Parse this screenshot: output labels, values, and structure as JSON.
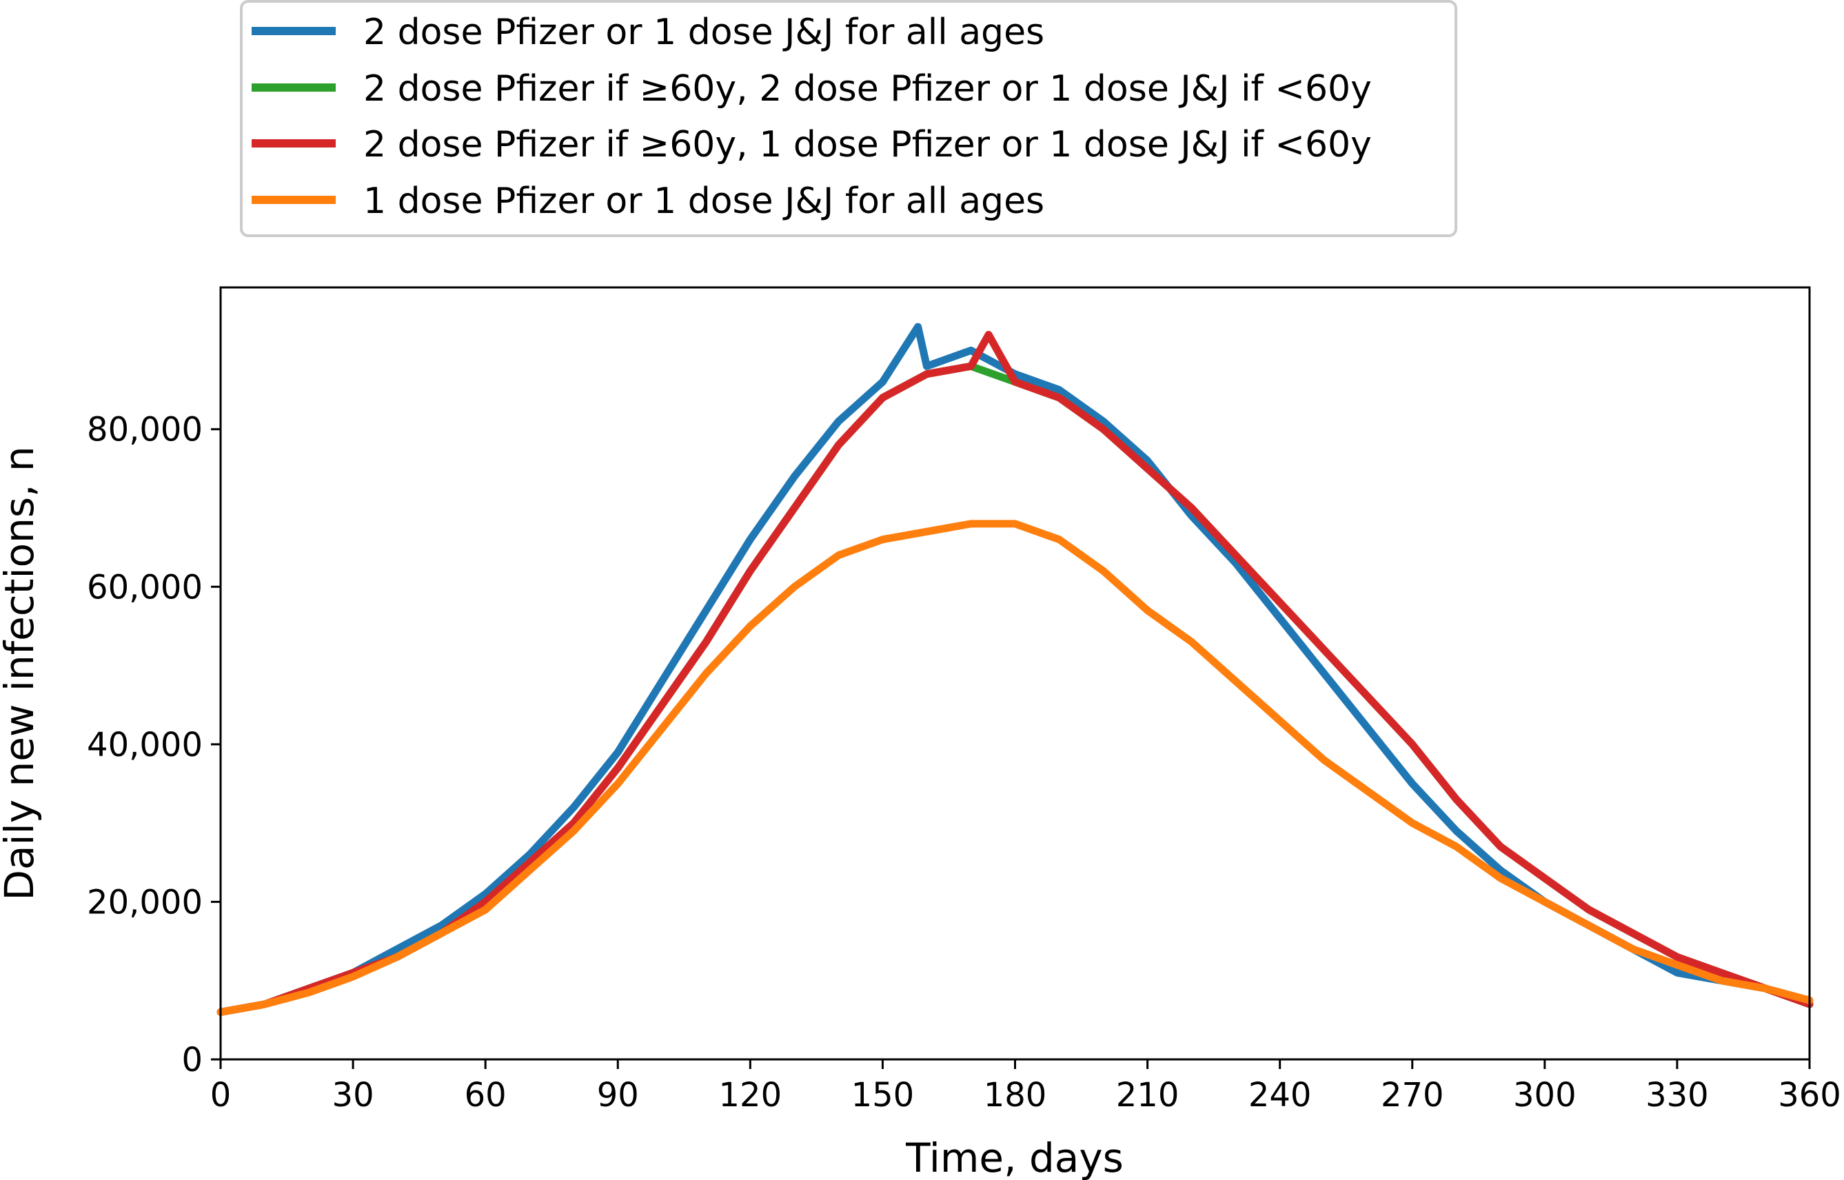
{
  "colors": {
    "series1": "#1f77b4",
    "series2": "#2ca02c",
    "series3": "#d62728",
    "series4": "#ff7f0e",
    "axis": "#000000",
    "legend_border": "#cccccc"
  },
  "chart_data": {
    "type": "line",
    "title": "",
    "xlabel": "Time, days",
    "ylabel": "Daily new infections, n",
    "xlim": [
      0,
      360
    ],
    "ylim": [
      0,
      98000
    ],
    "xticks": [
      0,
      30,
      60,
      90,
      120,
      150,
      180,
      210,
      240,
      270,
      300,
      330,
      360
    ],
    "yticks": [
      0,
      20000,
      40000,
      60000,
      80000
    ],
    "xtick_labels": [
      "0",
      "30",
      "60",
      "90",
      "120",
      "150",
      "180",
      "210",
      "240",
      "270",
      "300",
      "330",
      "360"
    ],
    "ytick_labels": [
      "0",
      "20,000",
      "40,000",
      "60,000",
      "80,000"
    ],
    "grid": false,
    "legend_position": "top-center, above plot",
    "series": [
      {
        "name": "2 dose Pfizer or 1 dose J&J for all ages",
        "color": "#1f77b4",
        "x": [
          0,
          10,
          20,
          30,
          40,
          50,
          60,
          70,
          80,
          90,
          100,
          110,
          120,
          130,
          140,
          150,
          158,
          160,
          170,
          180,
          190,
          200,
          210,
          220,
          230,
          240,
          250,
          260,
          270,
          280,
          290,
          300,
          310,
          320,
          330,
          340,
          350,
          360
        ],
        "y": [
          6000,
          7000,
          9000,
          11000,
          14000,
          17000,
          21000,
          26000,
          32000,
          39000,
          48000,
          57000,
          66000,
          74000,
          81000,
          86000,
          93000,
          88000,
          90000,
          87000,
          85000,
          81000,
          76000,
          69000,
          63000,
          56000,
          49000,
          42000,
          35000,
          29000,
          24000,
          20000,
          17000,
          14000,
          11000,
          10000,
          9000,
          7000
        ]
      },
      {
        "name": "2 dose Pfizer if ≥60y, 2 dose Pfizer or 1 dose J&J if <60y",
        "color": "#2ca02c",
        "x": [
          0,
          10,
          20,
          30,
          40,
          50,
          60,
          70,
          80,
          90,
          100,
          110,
          120,
          130,
          140,
          150,
          160,
          170,
          180,
          190,
          200,
          210,
          220,
          230,
          240,
          250,
          260,
          270,
          280,
          290,
          300,
          310,
          320,
          330,
          340,
          350,
          360
        ],
        "y": [
          6000,
          7000,
          9000,
          11000,
          13000,
          16000,
          20000,
          25000,
          30000,
          37000,
          45000,
          53000,
          62000,
          70000,
          78000,
          84000,
          87000,
          88000,
          86000,
          84000,
          80000,
          75000,
          70000,
          64000,
          58000,
          52000,
          46000,
          40000,
          33000,
          27000,
          23000,
          19000,
          16000,
          13000,
          11000,
          9000,
          7000
        ]
      },
      {
        "name": "2 dose Pfizer if ≥60y, 1 dose Pfizer or 1 dose J&J if <60y",
        "color": "#d62728",
        "x": [
          0,
          10,
          20,
          30,
          40,
          50,
          60,
          70,
          80,
          90,
          100,
          110,
          120,
          130,
          140,
          150,
          160,
          170,
          174,
          180,
          190,
          200,
          210,
          220,
          230,
          240,
          250,
          260,
          270,
          280,
          290,
          300,
          310,
          320,
          330,
          340,
          350,
          360
        ],
        "y": [
          6000,
          7000,
          9000,
          11000,
          13000,
          16000,
          20000,
          25000,
          30000,
          37000,
          45000,
          53000,
          62000,
          70000,
          78000,
          84000,
          87000,
          88000,
          92000,
          86000,
          84000,
          80000,
          75000,
          70000,
          64000,
          58000,
          52000,
          46000,
          40000,
          33000,
          27000,
          23000,
          19000,
          16000,
          13000,
          11000,
          9000,
          7000
        ]
      },
      {
        "name": "1 dose Pfizer or 1 dose J&J for all ages",
        "color": "#ff7f0e",
        "x": [
          0,
          10,
          20,
          30,
          40,
          50,
          60,
          70,
          80,
          90,
          100,
          110,
          120,
          130,
          140,
          150,
          160,
          170,
          180,
          190,
          200,
          210,
          220,
          230,
          240,
          250,
          260,
          270,
          280,
          290,
          300,
          310,
          320,
          330,
          340,
          350,
          360
        ],
        "y": [
          6000,
          7000,
          8500,
          10500,
          13000,
          16000,
          19000,
          24000,
          29000,
          35000,
          42000,
          49000,
          55000,
          60000,
          64000,
          66000,
          67000,
          68000,
          68000,
          66000,
          62000,
          57000,
          53000,
          48000,
          43000,
          38000,
          34000,
          30000,
          27000,
          23000,
          20000,
          17000,
          14000,
          12000,
          10000,
          9000,
          7500
        ]
      }
    ]
  }
}
